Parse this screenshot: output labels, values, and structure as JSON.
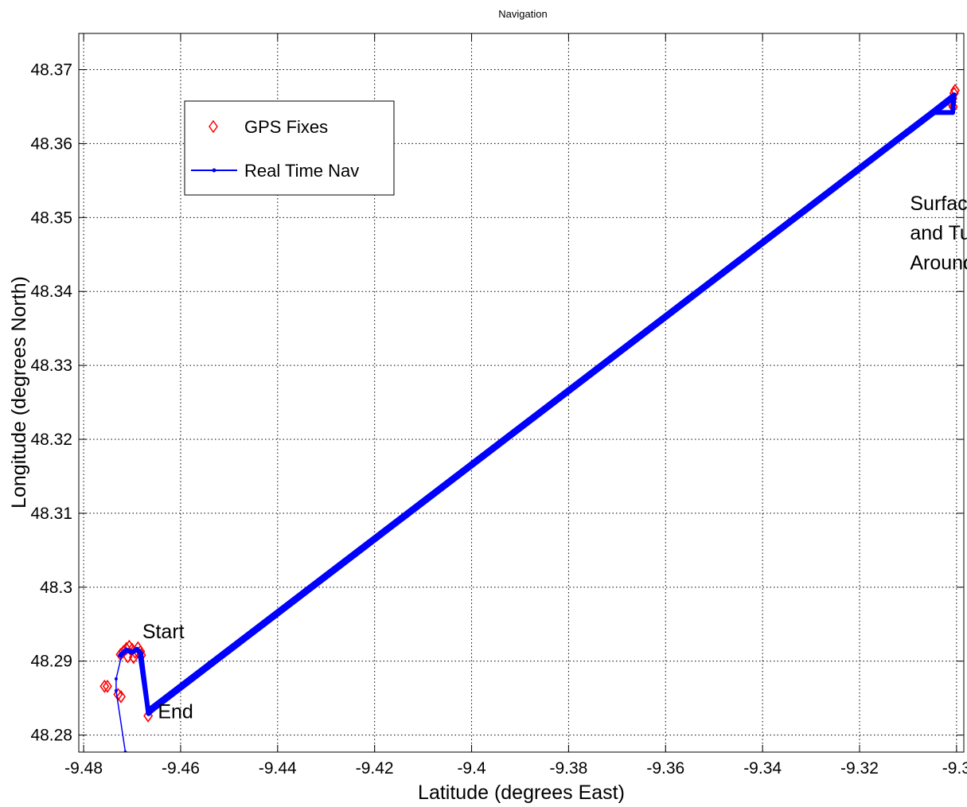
{
  "chart_data": {
    "type": "line",
    "title": "Navigation",
    "xlabel": "Latitude (degrees East)",
    "ylabel": "Longitude (degrees North)",
    "xlim": [
      -9.481,
      -9.2985
    ],
    "ylim": [
      48.2777,
      48.3749
    ],
    "xticks": [
      -9.48,
      -9.46,
      -9.44,
      -9.42,
      -9.4,
      -9.38,
      -9.36,
      -9.34,
      -9.32,
      -9.3
    ],
    "xtick_labels": [
      "-9.48",
      "-9.46",
      "-9.44",
      "-9.42",
      "-9.4",
      "-9.38",
      "-9.36",
      "-9.34",
      "-9.32",
      "-9.3"
    ],
    "yticks": [
      48.28,
      48.29,
      48.3,
      48.31,
      48.32,
      48.33,
      48.34,
      48.35,
      48.36,
      48.37
    ],
    "ytick_labels": [
      "48.28",
      "48.29",
      "48.3",
      "48.31",
      "48.32",
      "48.33",
      "48.34",
      "48.35",
      "48.36",
      "48.37"
    ],
    "grid": true,
    "legend_position": "top-left",
    "legend": [
      "GPS Fixes",
      "Real Time Nav"
    ],
    "colors": {
      "gps": "#ff0000",
      "nav": "#0000ff"
    },
    "series": [
      {
        "name": "GPS Fixes",
        "marker": "diamond",
        "points": [
          {
            "x": -9.4757,
            "y": 48.2866
          },
          {
            "x": -9.4751,
            "y": 48.2866
          },
          {
            "x": -9.4729,
            "y": 48.2855
          },
          {
            "x": -9.4723,
            "y": 48.2852
          },
          {
            "x": -9.4724,
            "y": 48.2909
          },
          {
            "x": -9.4718,
            "y": 48.2913
          },
          {
            "x": -9.4712,
            "y": 48.2917
          },
          {
            "x": -9.4706,
            "y": 48.292
          },
          {
            "x": -9.47,
            "y": 48.2916
          },
          {
            "x": -9.4694,
            "y": 48.2912
          },
          {
            "x": -9.4688,
            "y": 48.2918
          },
          {
            "x": -9.4683,
            "y": 48.2913
          },
          {
            "x": -9.4681,
            "y": 48.2908
          },
          {
            "x": -9.4709,
            "y": 48.2906
          },
          {
            "x": -9.4697,
            "y": 48.2905
          },
          {
            "x": -9.4667,
            "y": 48.2826
          },
          {
            "x": -9.3005,
            "y": 48.3668
          },
          {
            "x": -9.3008,
            "y": 48.3661
          },
          {
            "x": -9.3012,
            "y": 48.3656
          },
          {
            "x": -9.3007,
            "y": 48.365
          },
          {
            "x": -9.3003,
            "y": 48.3672
          }
        ]
      },
      {
        "name": "Real Time Nav",
        "marker": "dot",
        "points": [
          {
            "x": -9.4724,
            "y": 48.2908
          },
          {
            "x": -9.4712,
            "y": 48.2915
          },
          {
            "x": -9.47,
            "y": 48.2912
          },
          {
            "x": -9.469,
            "y": 48.2916
          },
          {
            "x": -9.4682,
            "y": 48.291
          },
          {
            "x": -9.4667,
            "y": 48.2832
          },
          {
            "x": -9.466,
            "y": 48.2837
          },
          {
            "x": -9.305,
            "y": 48.3643
          },
          {
            "x": -9.3005,
            "y": 48.3666
          },
          {
            "x": -9.3008,
            "y": 48.3642
          },
          {
            "x": -9.3045,
            "y": 48.3642
          },
          {
            "x": -9.301,
            "y": 48.366
          },
          {
            "x": -9.466,
            "y": 48.2833
          },
          {
            "x": -9.4666,
            "y": 48.2829
          },
          {
            "x": -9.4683,
            "y": 48.2906
          }
        ]
      },
      {
        "name": "",
        "marker": "dot",
        "points": [
          {
            "x": -9.4722,
            "y": 48.2907
          },
          {
            "x": -9.4733,
            "y": 48.2876
          },
          {
            "x": -9.4733,
            "y": 48.286
          },
          {
            "x": -9.4714,
            "y": 48.2777
          }
        ]
      }
    ],
    "annotations": [
      {
        "text": "Start",
        "x": -9.4679,
        "y": 48.2931
      },
      {
        "text": "End",
        "x": -9.4647,
        "y": 48.2823
      },
      {
        "text": "Surface",
        "x": -9.3096,
        "y": 48.351
      },
      {
        "text": "and Turn",
        "x": -9.3096,
        "y": 48.347
      },
      {
        "text": "Around",
        "x": -9.3096,
        "y": 48.343
      }
    ]
  }
}
